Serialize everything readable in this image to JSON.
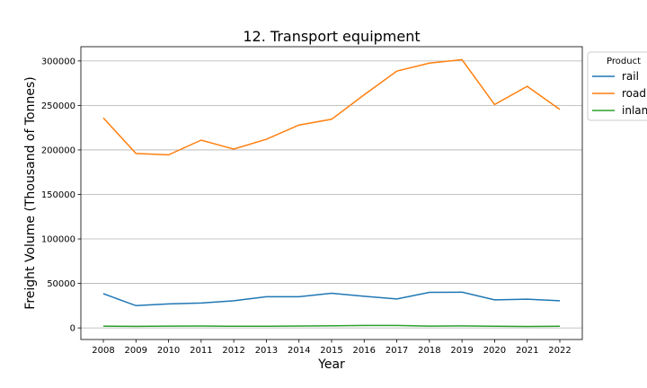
{
  "chart_data": {
    "type": "line",
    "title": "12. Transport equipment",
    "xlabel": "Year",
    "ylabel": "Freight Volume (Thousand of Tonnes)",
    "x": [
      "2008",
      "2009",
      "2010",
      "2011",
      "2012",
      "2013",
      "2014",
      "2015",
      "2016",
      "2017",
      "2018",
      "2019",
      "2020",
      "2021",
      "2022"
    ],
    "yticks": [
      "0",
      "50000",
      "100000",
      "150000",
      "200000",
      "250000",
      "300000"
    ],
    "ylim": [
      -13000,
      316000
    ],
    "grid": "horizontal",
    "legend": {
      "title": "Product",
      "placement": "outside-top-right"
    },
    "series": [
      {
        "name": "rail",
        "color": "#1f77b4",
        "values": [
          38500,
          25000,
          27000,
          28000,
          30500,
          35000,
          35000,
          39000,
          35500,
          32500,
          40000,
          40200,
          31500,
          32300,
          30500
        ]
      },
      {
        "name": "road",
        "color": "#ff7f0e",
        "values": [
          236000,
          196000,
          194500,
          211000,
          201000,
          212000,
          228000,
          234500,
          262000,
          288500,
          297500,
          301500,
          251000,
          271500,
          245500
        ]
      },
      {
        "name": "inland",
        "color": "#2ca02c",
        "values": [
          2000,
          1700,
          2000,
          2100,
          1800,
          1800,
          2100,
          2300,
          2700,
          2700,
          2000,
          2200,
          1900,
          1600,
          1800
        ]
      }
    ]
  }
}
